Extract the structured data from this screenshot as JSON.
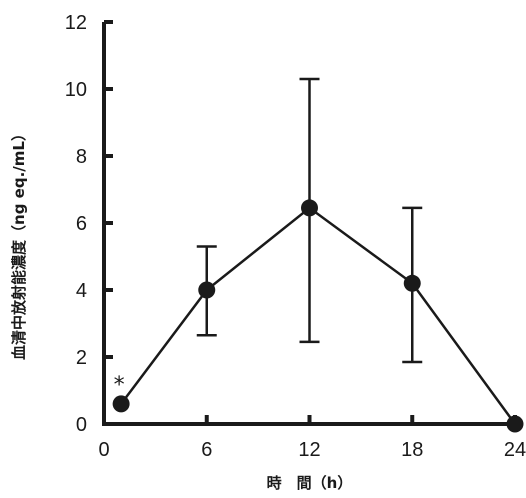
{
  "chart_data": {
    "type": "line",
    "title": "",
    "xlabel": "時　間（h）",
    "ylabel": "血清中放射能濃度（ng eq./mL）",
    "xlim": [
      0,
      24
    ],
    "ylim": [
      0,
      12
    ],
    "x_ticks": [
      0,
      6,
      12,
      18,
      24
    ],
    "y_ticks": [
      0,
      2,
      4,
      6,
      8,
      10,
      12
    ],
    "grid": false,
    "series": [
      {
        "x": [
          1,
          6,
          12,
          18,
          24
        ],
        "y": [
          0.6,
          4.0,
          6.45,
          4.2,
          0.0
        ],
        "error_upper": [
          null,
          5.3,
          10.3,
          6.45,
          null
        ],
        "error_lower": [
          null,
          2.65,
          2.45,
          1.85,
          null
        ]
      }
    ],
    "annotations": [
      {
        "text": "*",
        "x": 1,
        "y": 0.6
      }
    ],
    "colors": {
      "line": "#1a1a1a",
      "marker": "#1a1a1a"
    }
  }
}
